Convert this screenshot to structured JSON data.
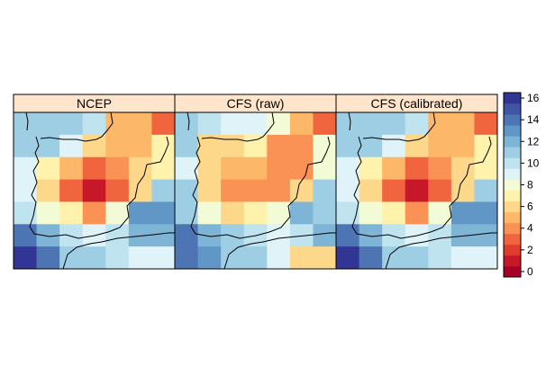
{
  "chart_data": {
    "type": "heatmap",
    "panels": [
      {
        "title": "NCEP",
        "grid": [
          [
            11,
            11,
            11,
            10,
            5,
            5,
            3
          ],
          [
            11,
            11,
            9,
            6,
            5,
            5,
            7
          ],
          [
            9,
            7,
            5,
            3,
            4,
            6,
            7
          ],
          [
            9,
            6,
            3,
            1,
            3,
            6,
            11
          ],
          [
            10,
            8,
            7,
            4,
            8,
            13,
            13
          ],
          [
            14,
            12,
            10,
            9,
            10,
            12,
            12
          ],
          [
            16,
            14,
            11,
            11,
            10,
            9,
            9
          ]
        ]
      },
      {
        "title": "CFS (raw)",
        "grid": [
          [
            11,
            10,
            9,
            9,
            8,
            5,
            3
          ],
          [
            11,
            6,
            6,
            7,
            4,
            4,
            8
          ],
          [
            9,
            6,
            5,
            5,
            4,
            4,
            8
          ],
          [
            11,
            6,
            4,
            4,
            4,
            6,
            11
          ],
          [
            11,
            8,
            6,
            7,
            8,
            12,
            11
          ],
          [
            14,
            12,
            11,
            10,
            9,
            10,
            12
          ],
          [
            14,
            13,
            11,
            11,
            9,
            6,
            6
          ]
        ]
      },
      {
        "title": "CFS (calibrated)",
        "grid": [
          [
            11,
            11,
            11,
            10,
            5,
            5,
            3
          ],
          [
            11,
            11,
            9,
            6,
            5,
            5,
            7
          ],
          [
            9,
            7,
            5,
            3,
            4,
            6,
            7
          ],
          [
            9,
            6,
            3,
            1,
            3,
            6,
            11
          ],
          [
            10,
            8,
            7,
            4,
            8,
            13,
            13
          ],
          [
            14,
            12,
            10,
            9,
            10,
            12,
            12
          ],
          [
            16,
            14,
            11,
            11,
            10,
            9,
            9
          ]
        ]
      }
    ],
    "colorbar": {
      "ticks": [
        0,
        2,
        4,
        6,
        8,
        10,
        12,
        14,
        16
      ],
      "colors": [
        "#a50026",
        "#c7182a",
        "#df3c2e",
        "#f0653e",
        "#f99254",
        "#fdb769",
        "#fed88a",
        "#fff2ac",
        "#f3fbd6",
        "#e0f3f8",
        "#bfe3ef",
        "#9dcee3",
        "#7eb5d6",
        "#6197c6",
        "#4d75b4",
        "#4255a4",
        "#313695"
      ]
    },
    "strip_color": "#ffe5cc",
    "border_color": "#000000"
  }
}
